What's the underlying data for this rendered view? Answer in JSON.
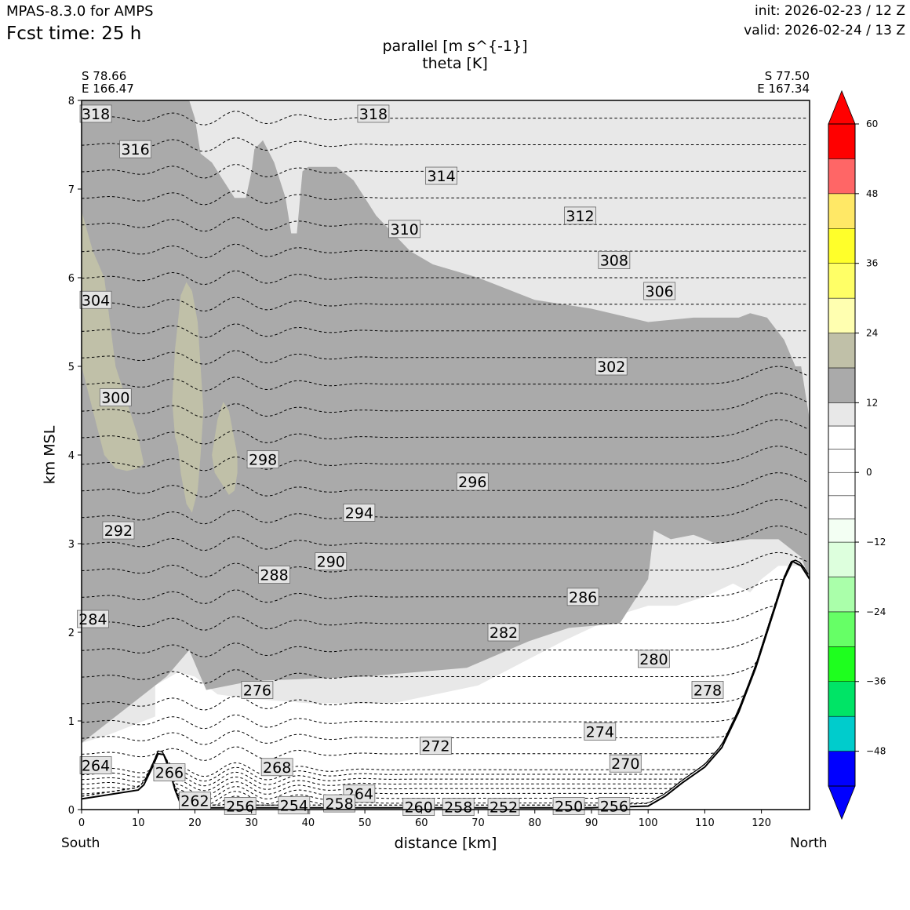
{
  "header": {
    "model": "MPAS-8.3.0 for AMPS",
    "fcst": "Fcst time:   25 h",
    "init": "init: 2026-02-23 / 12 Z",
    "valid": "valid: 2026-02-24 / 13 Z"
  },
  "colors": {
    "shade_8_12": "#e8e8e8",
    "shade_12_18": "#aaaaaa",
    "shade_18_24": "#c0c0a8",
    "terrain_line": "#000000",
    "contour": "#000000"
  },
  "chart_data": {
    "type": "cross-section",
    "title": [
      "parallel [m s^{-1}]",
      "theta [K]"
    ],
    "xlabel": "distance [km]",
    "ylabel": "km MSL",
    "xlim": [
      0,
      128.5
    ],
    "ylim": [
      0,
      8
    ],
    "xticks": [
      0,
      10,
      20,
      30,
      40,
      50,
      60,
      70,
      80,
      90,
      100,
      110,
      120
    ],
    "yticks": [
      0,
      1,
      2,
      3,
      4,
      5,
      6,
      7,
      8
    ],
    "endpoints": {
      "left": [
        "S 78.66",
        "E 166.47"
      ],
      "right": [
        "S 77.50",
        "E 167.34"
      ],
      "left_label": "South",
      "right_label": "North"
    },
    "colorbar": {
      "ticks": [
        "60",
        "48",
        "36",
        "24",
        "12",
        "0",
        "−12",
        "−24",
        "−36",
        "−48"
      ],
      "boundaries": [
        -54,
        -48,
        -42,
        -36,
        -30,
        -24,
        -18,
        -12,
        -8,
        -4,
        0,
        4,
        8,
        12,
        18,
        24,
        30,
        36,
        42,
        48,
        54,
        60
      ],
      "colors": [
        "#0000ff",
        "#00cccc",
        "#00e466",
        "#1eff1e",
        "#66ff66",
        "#aaffaa",
        "#ddffdd",
        "#f3fff3",
        "#ffffff",
        "#ffffff",
        "#ffffff",
        "#ffffff",
        "#e8e8e8",
        "#aaaaaa",
        "#c0c0a8",
        "#ffffb0",
        "#ffff66",
        "#ffff2a",
        "#ffe866",
        "#ff6666",
        "#ff0000"
      ],
      "under": "#0000ff",
      "over": "#ff0000"
    },
    "terrain": {
      "x": [
        0,
        5,
        10,
        11,
        12.5,
        13.5,
        14.5,
        15.5,
        16.5,
        17.5,
        18.5,
        20,
        25,
        35,
        50,
        70,
        90,
        100,
        103,
        106,
        110,
        113,
        116,
        119,
        122,
        124,
        125.5,
        127,
        128.5
      ],
      "y": [
        0.12,
        0.17,
        0.22,
        0.28,
        0.48,
        0.63,
        0.62,
        0.45,
        0.22,
        0.06,
        0.02,
        0.02,
        0.02,
        0.02,
        0.02,
        0.02,
        0.02,
        0.04,
        0.15,
        0.3,
        0.48,
        0.7,
        1.1,
        1.6,
        2.2,
        2.6,
        2.8,
        2.75,
        2.6
      ]
    },
    "shading": [
      {
        "band": "8-12",
        "x": [
          0,
          5,
          9,
          13,
          13,
          17,
          20,
          24,
          30,
          40,
          55,
          70,
          85,
          95,
          100,
          105,
          110,
          115,
          118,
          120,
          123,
          127,
          128.5,
          128.5,
          110,
          90,
          70,
          50,
          30,
          15,
          0
        ],
        "y": [
          0.75,
          0.85,
          0.95,
          1.05,
          1.4,
          1.55,
          1.5,
          1.3,
          1.25,
          1.2,
          1.2,
          1.4,
          1.9,
          2.2,
          2.3,
          2.3,
          2.4,
          2.55,
          2.45,
          2.6,
          2.75,
          2.75,
          2.6,
          8,
          8,
          8,
          8,
          8,
          8,
          8,
          8
        ]
      },
      {
        "band": "12-18",
        "x": [
          0,
          15,
          19,
          22,
          30,
          50,
          68,
          79,
          86,
          95,
          100,
          101,
          104,
          108,
          112,
          118,
          123,
          127,
          128.5,
          128.5,
          127,
          126,
          124,
          121,
          118,
          116,
          112,
          108,
          100,
          90,
          80,
          70,
          62,
          58,
          55,
          52,
          50,
          48,
          45,
          42,
          40,
          39,
          38,
          37,
          36,
          34,
          32,
          30.5,
          30,
          29,
          27,
          25,
          23,
          21,
          20,
          19,
          0
        ],
        "y": [
          0.75,
          1.5,
          1.8,
          1.35,
          1.45,
          1.5,
          1.6,
          1.9,
          2.05,
          2.1,
          2.6,
          3.15,
          3.05,
          3.1,
          3.0,
          3.05,
          3.05,
          2.85,
          2.6,
          4.4,
          5.0,
          5.0,
          5.3,
          5.55,
          5.6,
          5.55,
          5.55,
          5.55,
          5.5,
          5.65,
          5.75,
          6.0,
          6.15,
          6.3,
          6.5,
          6.7,
          6.9,
          7.1,
          7.25,
          7.25,
          7.25,
          7.2,
          6.5,
          6.5,
          6.9,
          7.3,
          7.55,
          7.45,
          7.2,
          6.9,
          6.9,
          7.1,
          7.3,
          7.4,
          7.8,
          8.0,
          8.0
        ]
      },
      {
        "band": "8-12",
        "x": [
          59,
          65,
          70,
          75,
          78,
          79,
          78,
          74,
          70,
          67,
          64,
          60,
          59
        ],
        "y": [
          7.9,
          7.9,
          7.8,
          7.6,
          7.3,
          7.0,
          6.85,
          6.7,
          6.7,
          6.85,
          7.0,
          7.2,
          7.9
        ]
      },
      {
        "band": "18-24",
        "x": [
          0,
          2,
          4,
          5,
          6,
          7,
          8,
          9,
          10,
          11,
          10,
          8,
          6,
          4,
          2,
          0
        ],
        "y": [
          6.75,
          6.3,
          6.0,
          5.5,
          5.0,
          4.8,
          4.6,
          4.4,
          4.2,
          3.9,
          3.85,
          3.82,
          3.85,
          4.0,
          4.5,
          5.0
        ]
      },
      {
        "band": "18-24",
        "x": [
          16,
          16.5,
          17.5,
          18.5,
          19.5,
          20.5,
          21,
          21.5,
          21,
          20.5,
          19.5,
          18.5,
          17.5,
          17,
          16.5,
          16
        ],
        "y": [
          4.6,
          5.2,
          5.8,
          5.95,
          5.85,
          5.5,
          5.0,
          4.5,
          4.0,
          3.6,
          3.35,
          3.45,
          3.8,
          4.1,
          4.2,
          4.6
        ]
      },
      {
        "band": "18-24",
        "x": [
          23,
          24,
          25,
          26,
          27.5,
          27.5,
          27,
          26,
          25,
          23.5,
          23
        ],
        "y": [
          4.0,
          4.4,
          4.6,
          4.5,
          4.0,
          3.8,
          3.6,
          3.55,
          3.65,
          3.8,
          4.0
        ]
      }
    ],
    "theta_labels": [
      {
        "value": "318",
        "x": 2.5,
        "y": 7.85
      },
      {
        "value": "318",
        "x": 51.5,
        "y": 7.85
      },
      {
        "value": "316",
        "x": 9.5,
        "y": 7.45
      },
      {
        "value": "314",
        "x": 63.5,
        "y": 7.15
      },
      {
        "value": "312",
        "x": 88,
        "y": 6.7
      },
      {
        "value": "310",
        "x": 57,
        "y": 6.55
      },
      {
        "value": "308",
        "x": 94,
        "y": 6.2
      },
      {
        "value": "306",
        "x": 102,
        "y": 5.85
      },
      {
        "value": "304",
        "x": 2.5,
        "y": 5.75
      },
      {
        "value": "302",
        "x": 93.5,
        "y": 5.0
      },
      {
        "value": "300",
        "x": 6,
        "y": 4.65
      },
      {
        "value": "298",
        "x": 32,
        "y": 3.95
      },
      {
        "value": "296",
        "x": 69,
        "y": 3.7
      },
      {
        "value": "294",
        "x": 49,
        "y": 3.35
      },
      {
        "value": "292",
        "x": 6.5,
        "y": 3.15
      },
      {
        "value": "290",
        "x": 44,
        "y": 2.8
      },
      {
        "value": "288",
        "x": 34,
        "y": 2.65
      },
      {
        "value": "286",
        "x": 88.5,
        "y": 2.4
      },
      {
        "value": "284",
        "x": 2,
        "y": 2.15
      },
      {
        "value": "282",
        "x": 74.5,
        "y": 2.0
      },
      {
        "value": "280",
        "x": 101,
        "y": 1.7
      },
      {
        "value": "278",
        "x": 110.5,
        "y": 1.35
      },
      {
        "value": "276",
        "x": 31,
        "y": 1.35
      },
      {
        "value": "274",
        "x": 91.5,
        "y": 0.88
      },
      {
        "value": "272",
        "x": 62.5,
        "y": 0.72
      },
      {
        "value": "270",
        "x": 96,
        "y": 0.52
      },
      {
        "value": "268",
        "x": 34.5,
        "y": 0.48
      },
      {
        "value": "266",
        "x": 15.5,
        "y": 0.42
      },
      {
        "value": "264",
        "x": 2.5,
        "y": 0.5
      },
      {
        "value": "264",
        "x": 49,
        "y": 0.18
      },
      {
        "value": "262",
        "x": 20,
        "y": 0.1
      },
      {
        "value": "256",
        "x": 28,
        "y": 0.04
      },
      {
        "value": "254",
        "x": 37.5,
        "y": 0.05
      },
      {
        "value": "258",
        "x": 45.5,
        "y": 0.07
      },
      {
        "value": "260",
        "x": 59.5,
        "y": 0.03
      },
      {
        "value": "258",
        "x": 66.5,
        "y": 0.03
      },
      {
        "value": "252",
        "x": 74.5,
        "y": 0.03
      },
      {
        "value": "250",
        "x": 86,
        "y": 0.04
      },
      {
        "value": "256",
        "x": 94,
        "y": 0.04
      }
    ]
  }
}
